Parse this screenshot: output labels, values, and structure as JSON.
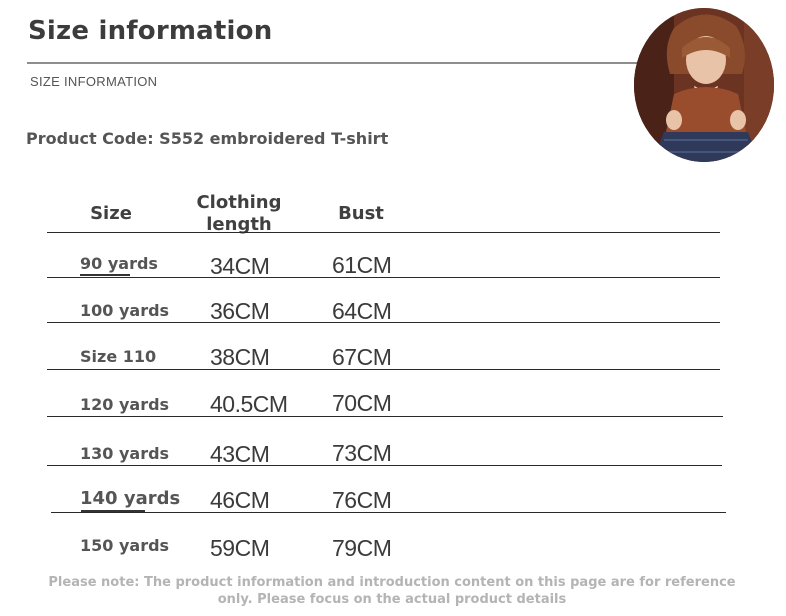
{
  "header": {
    "title": "Size information",
    "subtitle": "SIZE INFORMATION"
  },
  "product": {
    "code_line": "Product Code: S552 embroidered T-shirt"
  },
  "table": {
    "columns": [
      "Size",
      "Clothing length",
      "Bust"
    ],
    "rows": [
      {
        "size": "90 yards",
        "length": "34CM",
        "bust": "61CM"
      },
      {
        "size": "100 yards",
        "length": "36CM",
        "bust": "64CM"
      },
      {
        "size": "Size 110",
        "length": "38CM",
        "bust": "67CM"
      },
      {
        "size": "120 yards",
        "length": "40.5CM",
        "bust": "70CM"
      },
      {
        "size": "130 yards",
        "length": "43CM",
        "bust": "73CM"
      },
      {
        "size": "140 yards",
        "length": "46CM",
        "bust": "76CM"
      },
      {
        "size": "150 yards",
        "length": "59CM",
        "bust": "79CM"
      }
    ]
  },
  "footer": {
    "note_line1": "Please note: The product information and introduction content on this page are for reference",
    "note_line2": "only. Please focus on the actual product details"
  },
  "colors": {
    "text_dark": "#3c3c3c",
    "text_muted": "#555555",
    "note_gray": "#b4b4b4",
    "photo_brown": "#5a2c1e"
  }
}
